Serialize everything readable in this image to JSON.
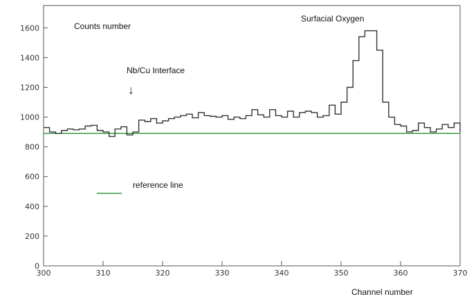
{
  "chart_data": {
    "type": "line",
    "title": "",
    "xlabel": "Channel number",
    "ylabel": "Counts number",
    "xlim": [
      300,
      370
    ],
    "ylim": [
      0,
      1750
    ],
    "x_ticks": [
      300,
      310,
      320,
      330,
      340,
      350,
      360,
      370
    ],
    "y_ticks": [
      0,
      200,
      400,
      600,
      800,
      1000,
      1200,
      1400,
      1600
    ],
    "grid": false,
    "annotations": [
      {
        "text": "Surfacial Oxygen",
        "x": 355,
        "y": 1600
      },
      {
        "text": "Nb/Cu Interface",
        "x": 315,
        "y": 1020,
        "arrow": "↓"
      }
    ],
    "legend": {
      "position": "left",
      "entries": [
        {
          "label": "reference line",
          "color": "#2e9a3e"
        }
      ]
    },
    "reference_line": {
      "label": "reference line",
      "value": 890,
      "color": "#2e9a3e"
    },
    "series": [
      {
        "style": "step",
        "x": [
          300,
          301,
          302,
          303,
          304,
          305,
          306,
          307,
          308,
          309,
          310,
          311,
          312,
          313,
          314,
          315,
          316,
          317,
          318,
          319,
          320,
          321,
          322,
          323,
          324,
          325,
          326,
          327,
          328,
          329,
          330,
          331,
          332,
          333,
          334,
          335,
          336,
          337,
          338,
          339,
          340,
          341,
          342,
          343,
          344,
          345,
          346,
          347,
          348,
          349,
          350,
          351,
          352,
          353,
          354,
          355,
          356,
          357,
          358,
          359,
          360,
          361,
          362,
          363,
          364,
          365,
          366,
          367,
          368,
          369,
          370
        ],
        "values": [
          930,
          900,
          890,
          910,
          920,
          915,
          920,
          940,
          945,
          910,
          900,
          870,
          920,
          935,
          880,
          900,
          980,
          970,
          990,
          960,
          975,
          990,
          1000,
          1010,
          1020,
          995,
          1030,
          1010,
          1005,
          1000,
          1010,
          985,
          1000,
          990,
          1010,
          1050,
          1015,
          1000,
          1050,
          1010,
          1000,
          1040,
          1000,
          1030,
          1040,
          1030,
          1000,
          1010,
          1080,
          1020,
          1100,
          1200,
          1380,
          1540,
          1580,
          1580,
          1450,
          1100,
          1000,
          950,
          940,
          900,
          910,
          960,
          930,
          900,
          920,
          950,
          930,
          960,
          900
        ],
        "color": "#333333"
      }
    ]
  }
}
